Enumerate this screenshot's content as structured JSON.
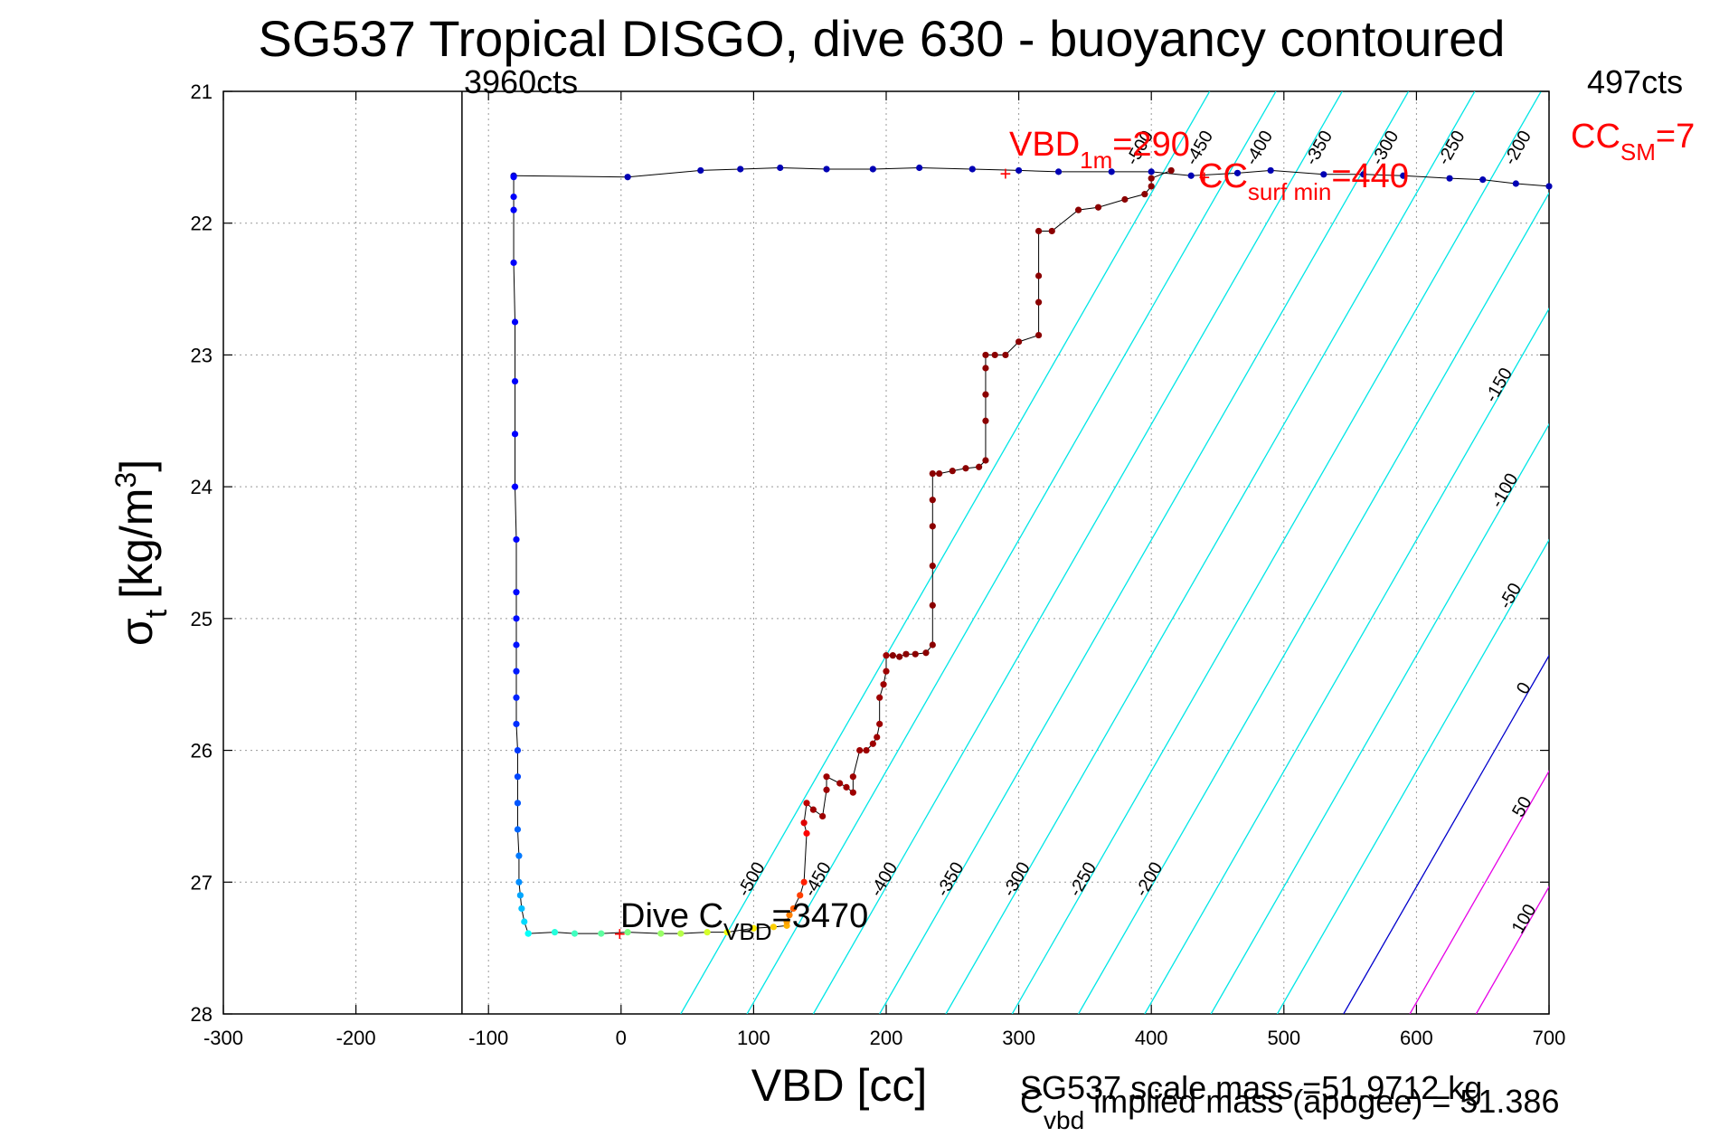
{
  "chart_data": {
    "type": "scatter",
    "title": "SG537 Tropical DISGO, dive 630 - buoyancy contoured",
    "xlabel": "VBD [cc]",
    "ylabel_main": "σ",
    "ylabel_sub": "t",
    "ylabel_units": "[kg/m",
    "ylabel_sup": "3",
    "ylabel_close": "]",
    "xlim": [
      -300,
      700
    ],
    "ylim": [
      21,
      28
    ],
    "y_reversed": true,
    "grid": true,
    "x_ticks": [
      -300,
      -200,
      -100,
      0,
      100,
      200,
      300,
      400,
      500,
      600,
      700
    ],
    "x_tick_labels": [
      "-300",
      "-200",
      "-100",
      "0",
      "100",
      "200",
      "300",
      "400",
      "500",
      "600",
      "700"
    ],
    "y_ticks": [
      21,
      22,
      23,
      24,
      25,
      26,
      27,
      28
    ],
    "y_tick_labels": [
      "21",
      "22",
      "23",
      "24",
      "25",
      "26",
      "27",
      "28"
    ],
    "annotations": {
      "cts_left": "3960cts",
      "cts_right": "497cts",
      "vbd_1m_main": "VBD",
      "vbd_1m_sub": "1m",
      "vbd_1m_value": "=290",
      "cc_surf_main": "CC",
      "cc_surf_sub": "surf min",
      "cc_surf_value": "=440",
      "cc_sm_main": "CC",
      "cc_sm_sub": "SM",
      "cc_sm_value": "=7",
      "dive_c_main": "Dive C",
      "dive_c_sub": "VBD",
      "dive_c_value": "=3470",
      "scale_mass": "SG537 scale mass =51.9712 kg",
      "implied_main": "C",
      "implied_sub": "vbd",
      "implied_rest": " implied mass (apogee) = 51.386"
    },
    "reference_line_x": -120,
    "colors": {
      "contour": "#00e6e6",
      "contour_zero": "#0000cc",
      "contour_positive": "#e600e6",
      "descent": "#0000b4",
      "ascent": "#8b0000",
      "annotation": "#ff0000"
    },
    "contours": [
      {
        "level": -500,
        "label": "-500",
        "x_at_28": 45,
        "label_pos": [
          -500,
          27.0
        ]
      },
      {
        "level": -450,
        "label": "-450",
        "x_at_28": 95,
        "label_pos": [
          -450,
          27.0
        ]
      },
      {
        "level": -400,
        "label": "-400",
        "x_at_28": 145,
        "label_pos": [
          -400,
          27.0
        ]
      },
      {
        "level": -350,
        "label": "-350",
        "x_at_28": 195,
        "label_pos": [
          -350,
          27.0
        ]
      },
      {
        "level": -300,
        "label": "-300",
        "x_at_28": 245,
        "label_pos": [
          -300,
          27.0
        ]
      },
      {
        "level": -250,
        "label": "-250",
        "x_at_28": 295,
        "label_pos": [
          -250,
          27.0
        ]
      },
      {
        "level": -200,
        "label": "-200",
        "x_at_28": 345,
        "label_pos": [
          -200,
          27.0
        ]
      },
      {
        "level": -150,
        "label": "-150",
        "x_at_28": 395,
        "label_pos": [
          -150,
          23.25
        ]
      },
      {
        "level": -100,
        "label": "-100",
        "x_at_28": 445,
        "label_pos": [
          -100,
          24.05
        ]
      },
      {
        "level": -50,
        "label": "-50",
        "x_at_28": 495,
        "label_pos": [
          -50,
          24.85
        ]
      },
      {
        "level": 0,
        "label": "0",
        "x_at_28": 545,
        "label_pos": [
          0,
          25.55
        ]
      },
      {
        "level": 50,
        "label": "50",
        "x_at_28": 595,
        "label_pos": [
          50,
          26.45
        ]
      },
      {
        "level": 100,
        "label": "100",
        "x_at_28": 645,
        "label_pos": [
          100,
          27.3
        ]
      }
    ],
    "top_contour_labels": [
      {
        "label": "-500",
        "x": 395,
        "y": 21.45
      },
      {
        "label": "-450",
        "x": 440,
        "y": 21.45
      },
      {
        "label": "-400",
        "x": 485,
        "y": 21.45
      },
      {
        "label": "-350",
        "x": 530,
        "y": 21.45
      },
      {
        "label": "-300",
        "x": 580,
        "y": 21.45
      },
      {
        "label": "-250",
        "x": 630,
        "y": 21.45
      },
      {
        "label": "-200",
        "x": 680,
        "y": 21.45
      }
    ],
    "series": [
      {
        "name": "descent",
        "x": [
          -81,
          -81,
          -81,
          -81,
          -80,
          -80,
          -80,
          -80,
          -79,
          -79,
          -79,
          -79,
          -79,
          -79,
          -79,
          -78,
          -78,
          -78,
          -78,
          -77,
          -77,
          -76,
          -75,
          -73,
          -70
        ],
        "y": [
          21.65,
          21.8,
          21.9,
          22.3,
          22.75,
          23.2,
          23.6,
          24.0,
          24.4,
          24.8,
          25.0,
          25.2,
          25.4,
          25.6,
          25.8,
          26.0,
          26.2,
          26.4,
          26.6,
          26.8,
          27.0,
          27.1,
          27.2,
          27.3,
          27.39
        ]
      },
      {
        "name": "apogee",
        "x": [
          -70,
          -50,
          -35,
          -15,
          5,
          30,
          45,
          65,
          80,
          100,
          115,
          125
        ],
        "y": [
          27.39,
          27.38,
          27.39,
          27.39,
          27.38,
          27.39,
          27.39,
          27.38,
          27.38,
          27.35,
          27.34,
          27.33
        ]
      },
      {
        "name": "ascent",
        "x": [
          125,
          127,
          130,
          135,
          138,
          140,
          138,
          140,
          145,
          152,
          155,
          155,
          165,
          170,
          175,
          175,
          180,
          185,
          190,
          193,
          195,
          195,
          198,
          200,
          200,
          205,
          210,
          215,
          222,
          230,
          235,
          235,
          235,
          235,
          235,
          235,
          240,
          250,
          260,
          270,
          275,
          275,
          275,
          275,
          275,
          282,
          290,
          300,
          315,
          315,
          315,
          315,
          325,
          345,
          360,
          380,
          395,
          400,
          400,
          415
        ],
        "y": [
          27.3,
          27.25,
          27.2,
          27.1,
          27.0,
          26.63,
          26.55,
          26.4,
          26.45,
          26.5,
          26.3,
          26.2,
          26.25,
          26.28,
          26.32,
          26.2,
          26.0,
          26.0,
          25.95,
          25.9,
          25.8,
          25.6,
          25.5,
          25.4,
          25.28,
          25.28,
          25.29,
          25.27,
          25.27,
          25.26,
          25.2,
          24.9,
          24.6,
          24.3,
          24.1,
          23.9,
          23.9,
          23.88,
          23.86,
          23.85,
          23.8,
          23.5,
          23.3,
          23.1,
          23.0,
          23.0,
          23.0,
          22.9,
          22.85,
          22.6,
          22.4,
          22.06,
          22.06,
          21.9,
          21.88,
          21.82,
          21.78,
          21.72,
          21.66,
          21.6
        ]
      },
      {
        "name": "surface",
        "x": [
          -81,
          5,
          60,
          90,
          120,
          155,
          190,
          225,
          265,
          300,
          330,
          370,
          400,
          430,
          465,
          490,
          530,
          560,
          590,
          625,
          650,
          675,
          700
        ],
        "y": [
          21.64,
          21.65,
          21.6,
          21.59,
          21.58,
          21.59,
          21.59,
          21.58,
          21.59,
          21.6,
          21.61,
          21.61,
          21.61,
          21.64,
          21.62,
          21.6,
          21.63,
          21.63,
          21.64,
          21.66,
          21.67,
          21.7,
          21.72
        ]
      }
    ]
  }
}
